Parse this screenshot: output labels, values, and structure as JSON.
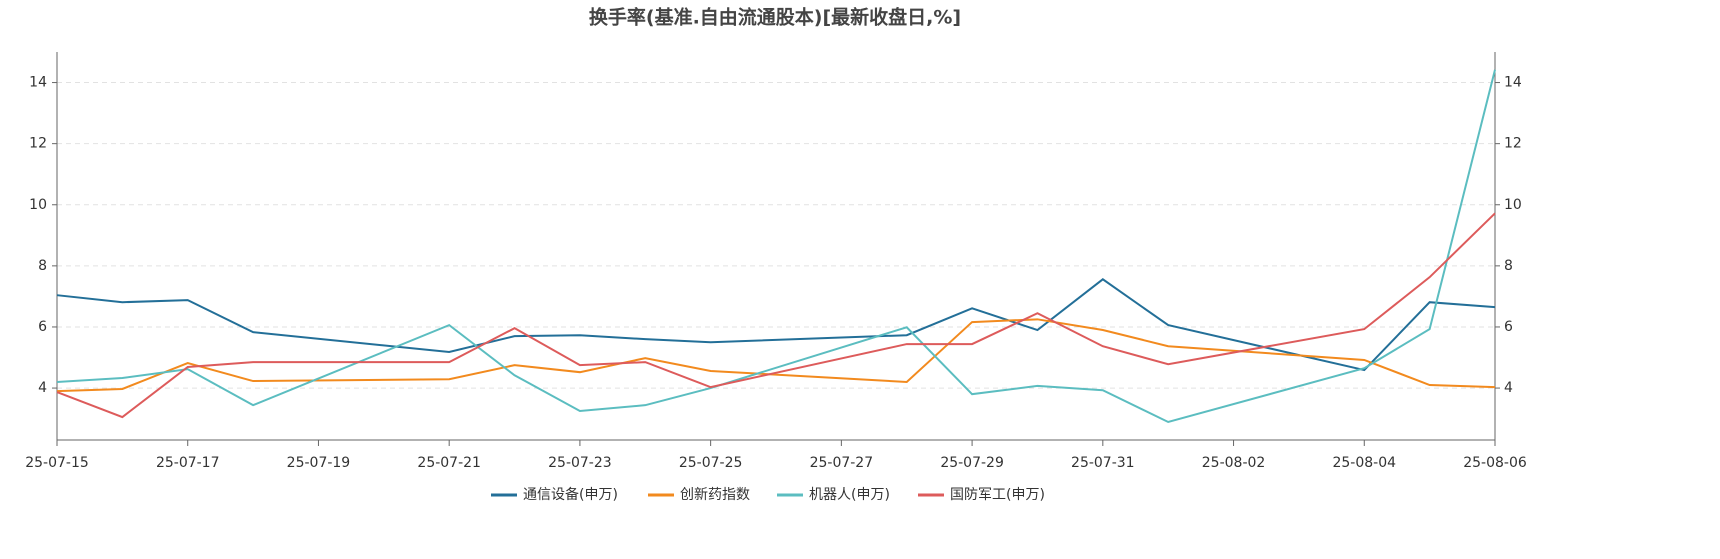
{
  "chart_data": {
    "type": "line",
    "title": "换手率(基准.自由流通股本)[最新收盘日,%]",
    "x": [
      "25-07-15",
      "25-07-16",
      "25-07-17",
      "25-07-18",
      "25-07-21",
      "25-07-22",
      "25-07-23",
      "25-07-24",
      "25-07-25",
      "25-07-28",
      "25-07-29",
      "25-07-30",
      "25-07-31",
      "25-08-01",
      "25-08-04",
      "25-08-05",
      "25-08-06"
    ],
    "series": [
      {
        "name": "通信设备(申万)",
        "color": "#236f98",
        "values": [
          7.04,
          6.81,
          6.88,
          5.83,
          5.18,
          5.7,
          5.73,
          5.6,
          5.5,
          5.73,
          6.61,
          5.9,
          7.56,
          6.06,
          4.59,
          6.81,
          6.65
        ]
      },
      {
        "name": "创新药指数",
        "color": "#f28a1e",
        "values": [
          3.9,
          3.97,
          4.82,
          4.23,
          4.29,
          4.75,
          4.52,
          4.98,
          4.56,
          4.2,
          6.16,
          6.25,
          5.9,
          5.37,
          4.92,
          4.1,
          4.03
        ]
      },
      {
        "name": "机器人(申万)",
        "color": "#5bbdc0",
        "values": [
          4.2,
          4.33,
          4.62,
          3.44,
          6.06,
          4.42,
          3.25,
          3.44,
          4.0,
          5.99,
          3.8,
          4.07,
          3.93,
          2.89,
          4.65,
          5.93,
          14.42
        ]
      },
      {
        "name": "国防军工(申万)",
        "color": "#dd5b5b",
        "values": [
          3.87,
          3.05,
          4.69,
          4.85,
          4.85,
          5.96,
          4.75,
          4.85,
          4.03,
          5.44,
          5.44,
          6.45,
          5.37,
          4.78,
          5.93,
          7.63,
          9.72
        ]
      }
    ],
    "xlim": [
      "25-07-15",
      "25-08-06"
    ],
    "xticks": [
      "25-07-15",
      "25-07-17",
      "25-07-19",
      "25-07-21",
      "25-07-23",
      "25-07-25",
      "25-07-27",
      "25-07-29",
      "25-07-31",
      "25-08-02",
      "25-08-04",
      "25-08-06"
    ],
    "ylim": [
      2.3,
      15
    ],
    "yticks": [
      4,
      6,
      8,
      10,
      12,
      14
    ],
    "y2lim": [
      2.3,
      15
    ],
    "y2ticks": [
      4,
      6,
      8,
      10,
      12,
      14
    ],
    "grid": true,
    "legend": "bottom"
  }
}
